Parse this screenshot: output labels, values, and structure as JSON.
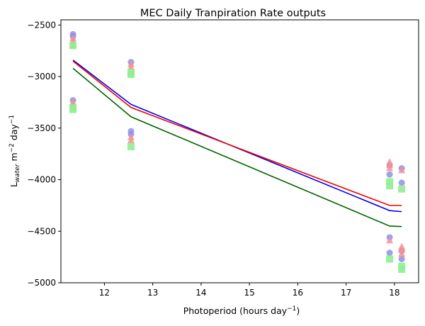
{
  "chart_data": {
    "type": "scatter",
    "title": "MEC Daily Tranpiration Rate outputs",
    "xlabel": {
      "prefix": "Photoperiod (hours day",
      "sup": "−1",
      "suffix": ")"
    },
    "ylabel": {
      "base": "L",
      "sub": "water",
      "mid": " m",
      "sup1": "−2",
      "mid2": " day",
      "sup2": "−1"
    },
    "xlim": [
      11.1,
      18.5
    ],
    "ylim": [
      -5000,
      -2450
    ],
    "xticks": [
      12,
      13,
      14,
      15,
      16,
      17,
      18
    ],
    "yticks": [
      -5000,
      -4500,
      -4000,
      -3500,
      -3000,
      -2500
    ],
    "ytick_labels": [
      "−5000",
      "−4500",
      "−4000",
      "−3500",
      "−3000",
      "−2500"
    ],
    "grid": false,
    "legend": "none",
    "lines": [
      {
        "color": "#0000ee",
        "x": [
          11.35,
          12.55,
          17.9,
          18.15
        ],
        "y": [
          -2840,
          -3270,
          -4300,
          -4310
        ]
      },
      {
        "color": "#ee0000",
        "x": [
          11.35,
          12.55,
          17.9,
          18.15
        ],
        "y": [
          -2850,
          -3300,
          -4250,
          -4250
        ]
      },
      {
        "color": "#006400",
        "x": [
          11.35,
          12.55,
          17.9,
          18.15
        ],
        "y": [
          -2920,
          -3390,
          -4450,
          -4455
        ]
      }
    ],
    "scatter": [
      {
        "marker": "circle",
        "color": "#8f8fe8",
        "alpha": 0.85,
        "x": [
          11.35,
          11.35,
          11.35,
          12.55,
          12.55,
          12.55,
          17.9,
          17.9,
          17.9,
          17.9,
          18.15,
          18.15,
          18.15,
          18.15
        ],
        "y": [
          -2590,
          -2610,
          -3230,
          -2860,
          -3530,
          -3560,
          -3860,
          -3950,
          -4560,
          -4710,
          -3890,
          -4030,
          -4690,
          -4770
        ]
      },
      {
        "marker": "triangle",
        "color": "#f59090",
        "alpha": 0.85,
        "x": [
          11.35,
          11.35,
          11.35,
          11.35,
          11.35,
          12.55,
          12.55,
          12.55,
          12.55,
          17.9,
          17.9,
          17.9,
          17.9,
          18.15,
          18.15,
          18.15,
          18.15
        ],
        "y": [
          -2630,
          -2660,
          -3250,
          -3270,
          -2700,
          -2880,
          -2910,
          -3590,
          -3620,
          -3830,
          -3860,
          -3890,
          -4590,
          -3910,
          -4650,
          -4680,
          -4720
        ]
      },
      {
        "marker": "square",
        "color": "#90ee90",
        "alpha": 0.9,
        "x": [
          11.35,
          11.35,
          11.35,
          12.55,
          12.55,
          12.55,
          17.9,
          17.9,
          17.9,
          18.15,
          18.15,
          18.15
        ],
        "y": [
          -2700,
          -3300,
          -3320,
          -2960,
          -2980,
          -3680,
          -4020,
          -4060,
          -4770,
          -4090,
          -4840,
          -4870
        ]
      }
    ]
  }
}
